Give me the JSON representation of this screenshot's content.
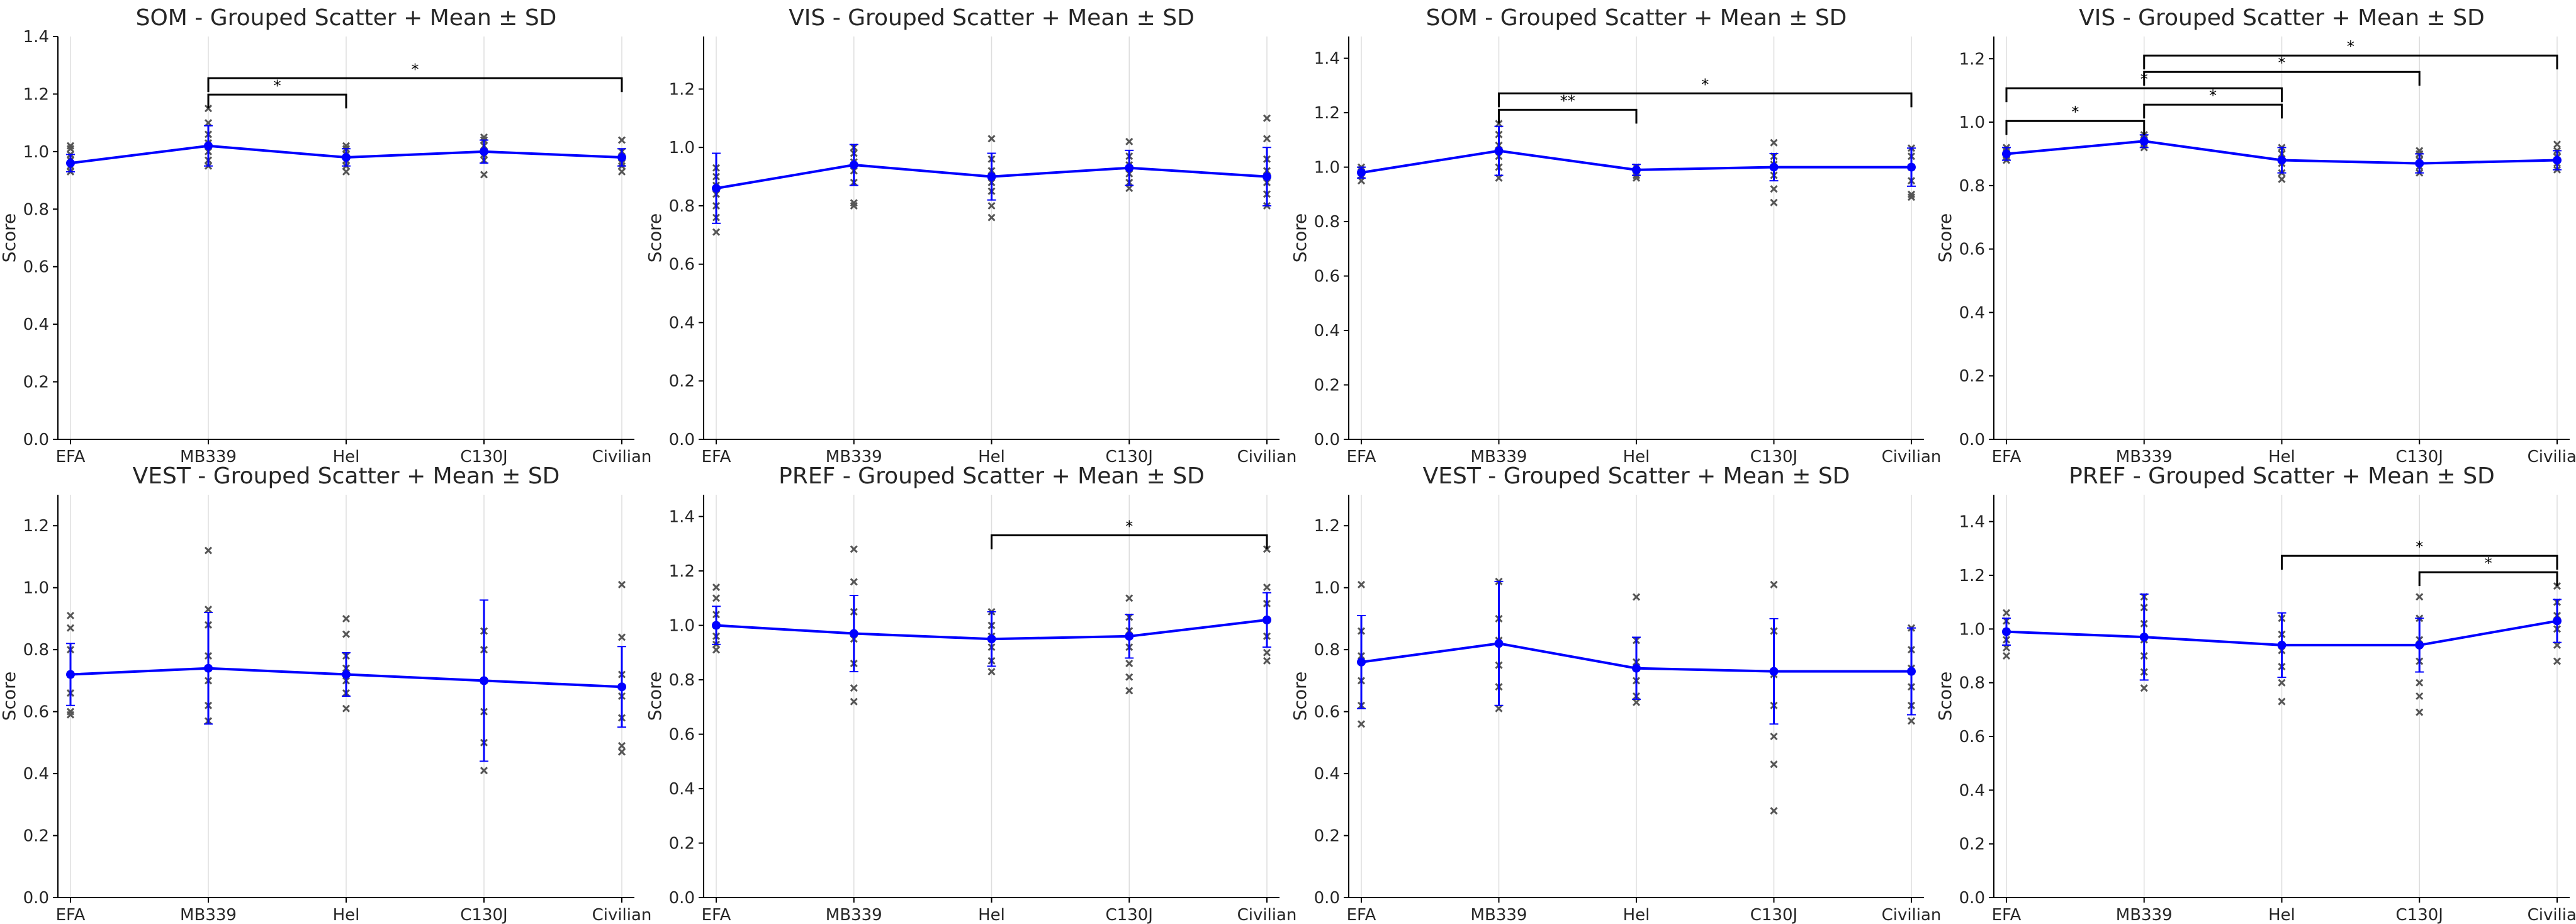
{
  "figure": {
    "colors": {
      "mean_line": "#0000ff",
      "scatter": "#555555",
      "bracket": "#000000",
      "grid": "#dddddd",
      "axis": "#000000"
    }
  },
  "chart_data": [
    {
      "type": "scatter",
      "title": "SOM - Grouped Scatter + Mean ± SD",
      "xlabel": "",
      "ylabel": "Score",
      "categories": [
        "EFA",
        "MB339",
        "Hel",
        "C130J",
        "Civilian"
      ],
      "ylim": [
        0,
        1.4
      ],
      "yticks": [
        "0.0",
        "0.2",
        "0.4",
        "0.6",
        "0.8",
        "1.0",
        "1.2",
        "1.4"
      ],
      "series": [
        {
          "name": "Mean",
          "values": [
            0.96,
            1.02,
            0.98,
            1.0,
            0.98
          ],
          "sd": [
            0.03,
            0.07,
            0.03,
            0.04,
            0.03
          ]
        }
      ],
      "points": [
        [
          0.93,
          0.95,
          0.97,
          0.99,
          1.01,
          1.02
        ],
        [
          0.95,
          0.97,
          1.0,
          1.03,
          1.06,
          1.1,
          1.15
        ],
        [
          0.93,
          0.95,
          0.97,
          0.99,
          1.01,
          1.02
        ],
        [
          0.92,
          0.97,
          0.99,
          1.02,
          1.04,
          1.05
        ],
        [
          0.93,
          0.95,
          0.96,
          0.98,
          1.0,
          1.04
        ]
      ],
      "brackets": [
        {
          "from": 1,
          "to": 2,
          "label": "*"
        },
        {
          "from": 1,
          "to": 4,
          "label": "*"
        }
      ]
    },
    {
      "type": "scatter",
      "title": "VIS - Grouped Scatter + Mean ± SD",
      "xlabel": "",
      "ylabel": "Score",
      "categories": [
        "EFA",
        "MB339",
        "Hel",
        "C130J",
        "Civilian"
      ],
      "ylim": [
        0,
        1.38
      ],
      "yticks": [
        "0.0",
        "0.2",
        "0.4",
        "0.6",
        "0.8",
        "1.0",
        "1.2"
      ],
      "series": [
        {
          "name": "Mean",
          "values": [
            0.86,
            0.94,
            0.9,
            0.93,
            0.9
          ],
          "sd": [
            0.12,
            0.07,
            0.08,
            0.06,
            0.1
          ]
        }
      ],
      "points": [
        [
          0.71,
          0.76,
          0.8,
          0.84,
          0.87,
          0.9,
          0.93
        ],
        [
          0.8,
          0.81,
          0.88,
          0.92,
          0.95,
          0.98,
          1.0
        ],
        [
          0.76,
          0.8,
          0.85,
          0.88,
          0.92,
          0.96,
          1.03
        ],
        [
          0.86,
          0.88,
          0.91,
          0.94,
          0.97,
          1.02
        ],
        [
          0.8,
          0.84,
          0.88,
          0.92,
          0.96,
          1.03,
          1.1
        ]
      ],
      "brackets": []
    },
    {
      "type": "scatter",
      "title": "SOM - Grouped Scatter + Mean ± SD",
      "xlabel": "",
      "ylabel": "Score",
      "categories": [
        "EFA",
        "MB339",
        "Hel",
        "C130J",
        "Civilian"
      ],
      "ylim": [
        0,
        1.48
      ],
      "yticks": [
        "0.0",
        "0.2",
        "0.4",
        "0.6",
        "0.8",
        "1.0",
        "1.2",
        "1.4"
      ],
      "series": [
        {
          "name": "Mean",
          "values": [
            0.98,
            1.06,
            0.99,
            1.0,
            1.0
          ],
          "sd": [
            0.02,
            0.09,
            0.02,
            0.05,
            0.07
          ]
        }
      ],
      "points": [
        [
          0.95,
          0.97,
          0.98,
          0.99,
          1.0
        ],
        [
          0.96,
          1.0,
          1.04,
          1.08,
          1.12,
          1.16
        ],
        [
          0.96,
          0.97,
          0.98,
          0.99,
          1.0
        ],
        [
          0.87,
          0.92,
          0.97,
          1.01,
          1.04,
          1.09
        ],
        [
          0.89,
          0.9,
          0.95,
          1.0,
          1.04,
          1.07
        ]
      ],
      "brackets": [
        {
          "from": 1,
          "to": 2,
          "label": "**"
        },
        {
          "from": 1,
          "to": 4,
          "label": "*"
        }
      ]
    },
    {
      "type": "scatter",
      "title": "VIS - Grouped Scatter + Mean ± SD",
      "xlabel": "",
      "ylabel": "Score",
      "categories": [
        "EFA",
        "MB339",
        "Hel",
        "C130J",
        "Civilian"
      ],
      "ylim": [
        0,
        1.27
      ],
      "yticks": [
        "0.0",
        "0.2",
        "0.4",
        "0.6",
        "0.8",
        "1.0",
        "1.2"
      ],
      "series": [
        {
          "name": "Mean",
          "values": [
            0.9,
            0.94,
            0.88,
            0.87,
            0.88
          ],
          "sd": [
            0.02,
            0.02,
            0.04,
            0.03,
            0.03
          ]
        }
      ],
      "points": [
        [
          0.88,
          0.89,
          0.9,
          0.91,
          0.92
        ],
        [
          0.92,
          0.93,
          0.94,
          0.95,
          0.96
        ],
        [
          0.82,
          0.84,
          0.87,
          0.9,
          0.92
        ],
        [
          0.84,
          0.86,
          0.88,
          0.9,
          0.91
        ],
        [
          0.85,
          0.87,
          0.89,
          0.91,
          0.93
        ]
      ],
      "brackets": [
        {
          "from": 0,
          "to": 1,
          "label": "*"
        },
        {
          "from": 0,
          "to": 2,
          "label": "*"
        },
        {
          "from": 1,
          "to": 2,
          "label": "*"
        },
        {
          "from": 1,
          "to": 3,
          "label": "*"
        },
        {
          "from": 1,
          "to": 4,
          "label": "*"
        }
      ]
    },
    {
      "type": "scatter",
      "title": "VEST - Grouped Scatter + Mean ± SD",
      "xlabel": "",
      "ylabel": "Score",
      "categories": [
        "EFA",
        "MB339",
        "Hel",
        "C130J",
        "Civilian"
      ],
      "ylim": [
        0,
        1.3
      ],
      "yticks": [
        "0.0",
        "0.2",
        "0.4",
        "0.6",
        "0.8",
        "1.0",
        "1.2"
      ],
      "series": [
        {
          "name": "Mean",
          "values": [
            0.72,
            0.74,
            0.72,
            0.7,
            0.68
          ],
          "sd": [
            0.1,
            0.18,
            0.07,
            0.26,
            0.13
          ]
        }
      ],
      "points": [
        [
          0.59,
          0.6,
          0.66,
          0.72,
          0.8,
          0.87,
          0.91
        ],
        [
          0.57,
          0.62,
          0.7,
          0.78,
          0.88,
          0.93,
          1.12
        ],
        [
          0.61,
          0.66,
          0.7,
          0.74,
          0.78,
          0.85,
          0.9
        ],
        [
          0.41,
          0.5,
          0.6,
          0.7,
          0.8,
          0.86
        ],
        [
          0.47,
          0.49,
          0.58,
          0.65,
          0.72,
          0.84,
          1.01
        ]
      ],
      "brackets": []
    },
    {
      "type": "scatter",
      "title": "PREF - Grouped Scatter + Mean ± SD",
      "xlabel": "",
      "ylabel": "Score",
      "categories": [
        "EFA",
        "MB339",
        "Hel",
        "C130J",
        "Civilian"
      ],
      "ylim": [
        0,
        1.48
      ],
      "yticks": [
        "0.0",
        "0.2",
        "0.4",
        "0.6",
        "0.8",
        "1.0",
        "1.2",
        "1.4"
      ],
      "series": [
        {
          "name": "Mean",
          "values": [
            1.0,
            0.97,
            0.95,
            0.96,
            1.02
          ],
          "sd": [
            0.07,
            0.14,
            0.1,
            0.08,
            0.1
          ]
        }
      ],
      "points": [
        [
          0.91,
          0.93,
          0.96,
          1.0,
          1.04,
          1.1,
          1.14
        ],
        [
          0.72,
          0.77,
          0.86,
          0.95,
          1.05,
          1.16,
          1.28
        ],
        [
          0.83,
          0.87,
          0.92,
          0.96,
          1.0,
          1.05
        ],
        [
          0.76,
          0.81,
          0.86,
          0.92,
          0.98,
          1.03,
          1.1
        ],
        [
          0.87,
          0.9,
          0.96,
          1.02,
          1.08,
          1.14,
          1.28
        ]
      ],
      "brackets": [
        {
          "from": 2,
          "to": 4,
          "label": "*"
        }
      ]
    },
    {
      "type": "scatter",
      "title": "VEST - Grouped Scatter + Mean ± SD",
      "xlabel": "",
      "ylabel": "Score",
      "categories": [
        "EFA",
        "MB339",
        "Hel",
        "C130J",
        "Civilian"
      ],
      "ylim": [
        0,
        1.3
      ],
      "yticks": [
        "0.0",
        "0.2",
        "0.4",
        "0.6",
        "0.8",
        "1.0",
        "1.2"
      ],
      "series": [
        {
          "name": "Mean",
          "values": [
            0.76,
            0.82,
            0.74,
            0.73,
            0.73
          ],
          "sd": [
            0.15,
            0.2,
            0.1,
            0.17,
            0.14
          ]
        }
      ],
      "points": [
        [
          0.56,
          0.62,
          0.7,
          0.78,
          0.86,
          1.01
        ],
        [
          0.61,
          0.68,
          0.75,
          0.83,
          0.9,
          1.02
        ],
        [
          0.63,
          0.65,
          0.7,
          0.76,
          0.83,
          0.97
        ],
        [
          0.28,
          0.43,
          0.52,
          0.62,
          0.72,
          0.86,
          1.01
        ],
        [
          0.57,
          0.62,
          0.68,
          0.74,
          0.8,
          0.87
        ]
      ],
      "brackets": []
    },
    {
      "type": "scatter",
      "title": "PREF - Grouped Scatter + Mean ± SD",
      "xlabel": "",
      "ylabel": "Score",
      "categories": [
        "EFA",
        "MB339",
        "Hel",
        "C130J",
        "Civilian"
      ],
      "ylim": [
        0,
        1.5
      ],
      "yticks": [
        "0.0",
        "0.2",
        "0.4",
        "0.6",
        "0.8",
        "1.0",
        "1.2",
        "1.4"
      ],
      "series": [
        {
          "name": "Mean",
          "values": [
            0.99,
            0.97,
            0.94,
            0.94,
            1.03
          ],
          "sd": [
            0.05,
            0.16,
            0.12,
            0.1,
            0.08
          ]
        }
      ],
      "points": [
        [
          0.9,
          0.93,
          0.96,
          0.99,
          1.03,
          1.06
        ],
        [
          0.78,
          0.84,
          0.9,
          0.96,
          1.02,
          1.08,
          1.12
        ],
        [
          0.73,
          0.8,
          0.86,
          0.92,
          0.98,
          1.04
        ],
        [
          0.69,
          0.75,
          0.8,
          0.88,
          0.96,
          1.04,
          1.12
        ],
        [
          0.88,
          0.94,
          1.0,
          1.05,
          1.1,
          1.16
        ]
      ],
      "brackets": [
        {
          "from": 2,
          "to": 4,
          "label": "*"
        },
        {
          "from": 3,
          "to": 4,
          "label": "*"
        }
      ]
    }
  ]
}
